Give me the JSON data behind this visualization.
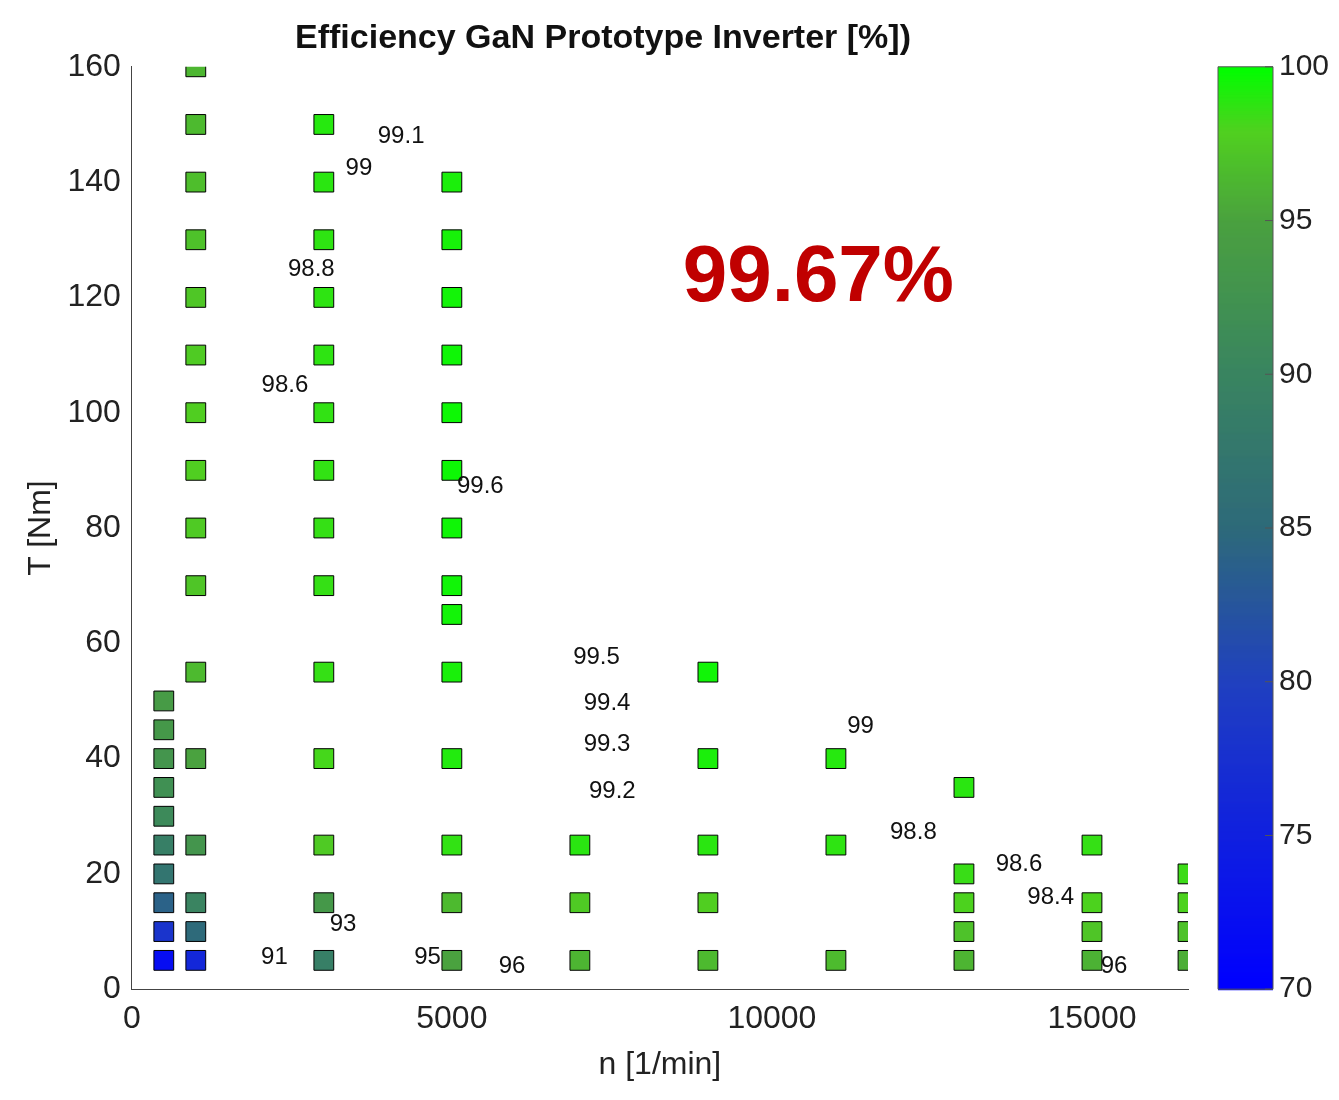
{
  "chart_data": {
    "type": "scatter",
    "title": "Efficiency GaN Prototype Inverter [%])",
    "xlabel": "n [1/min]",
    "ylabel": "T [Nm]",
    "marker": "square",
    "grid": false,
    "legend": false,
    "x": [
      500,
      500,
      500,
      500,
      500,
      500,
      500,
      500,
      500,
      500,
      1000,
      1000,
      1000,
      1000,
      1000,
      1000,
      1000,
      1000,
      1000,
      1000,
      1000,
      1000,
      1000,
      1000,
      1000,
      1000,
      3000,
      3000,
      3000,
      3000,
      3000,
      3000,
      3000,
      3000,
      3000,
      3000,
      3000,
      3000,
      3000,
      3000,
      5000,
      5000,
      5000,
      5000,
      5000,
      5000,
      5000,
      5000,
      5000,
      5000,
      5000,
      5000,
      5000,
      5000,
      7000,
      7000,
      7000,
      9000,
      9000,
      9000,
      9000,
      9000,
      11000,
      11000,
      11000,
      13000,
      13000,
      13000,
      13000,
      13000,
      15000,
      15000,
      15000,
      15000,
      16500,
      16500,
      16500,
      16500
    ],
    "values": [
      5,
      10,
      15,
      20,
      25,
      30,
      35,
      40,
      45,
      50,
      5,
      10,
      15,
      25,
      40,
      55,
      70,
      80,
      90,
      100,
      110,
      120,
      130,
      140,
      150,
      160,
      5,
      15,
      25,
      40,
      55,
      70,
      80,
      90,
      100,
      110,
      120,
      130,
      140,
      150,
      5,
      15,
      25,
      40,
      55,
      65,
      70,
      80,
      90,
      100,
      110,
      120,
      130,
      140,
      5,
      15,
      25,
      5,
      15,
      25,
      40,
      55,
      5,
      25,
      40,
      5,
      10,
      15,
      20,
      35,
      5,
      10,
      15,
      25,
      5,
      10,
      15,
      20
    ],
    "cvalues": [
      72,
      78,
      84,
      87,
      89,
      91,
      92,
      93,
      93.5,
      94,
      76,
      85,
      90,
      93,
      95,
      96.5,
      97.2,
      97.5,
      97.8,
      97.8,
      97.6,
      97.3,
      97,
      96.8,
      96.5,
      96.3,
      89,
      93.5,
      97.5,
      98.2,
      98.6,
      98.6,
      98.6,
      98.7,
      98.7,
      98.8,
      98.8,
      98.8,
      98.9,
      99,
      95,
      96.5,
      98.7,
      99.1,
      99.35,
      99.5,
      99.55,
      99.6,
      99.65,
      99.67,
      99.6,
      99.5,
      99.4,
      99.3,
      96.2,
      97.5,
      98.9,
      96.5,
      97.8,
      98.9,
      99.3,
      99.55,
      96.6,
      98.8,
      99,
      96.2,
      97,
      98,
      98.5,
      98.9,
      96,
      97.2,
      98,
      98.6,
      95.8,
      97,
      98,
      98.4
    ],
    "xlim": [
      0,
      16500
    ],
    "xticks": [
      0,
      5000,
      10000,
      15000
    ],
    "ylim": [
      0,
      160
    ],
    "yticks": [
      0,
      20,
      40,
      60,
      80,
      100,
      120,
      140,
      160
    ],
    "clim": [
      70,
      100
    ],
    "cticks": [
      70,
      75,
      80,
      85,
      90,
      95,
      100
    ],
    "annotations": [
      "99.67%",
      "99.1",
      "99",
      "98.8",
      "98.6",
      "99.6",
      "99.5",
      "99.4",
      "99.3",
      "99.2",
      "99",
      "98.8",
      "98.6",
      "98.4",
      "96",
      "96",
      "95",
      "93",
      "91"
    ]
  }
}
